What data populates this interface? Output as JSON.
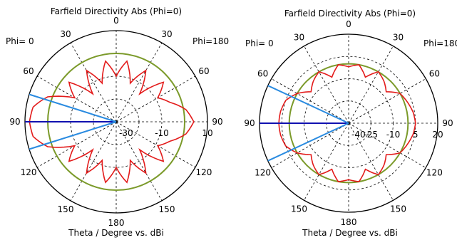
{
  "chart_data": [
    {
      "type": "polar",
      "title": "Farfield Directivity Abs (Phi=0)",
      "xlabel": "Theta / Degree vs. dBi",
      "phi_left_label": "Phi=  0",
      "phi_right_label": "Phi=180",
      "angle_ticks": [
        "0",
        "30",
        "60",
        "90",
        "120",
        "150",
        "180",
        "150",
        "120",
        "90",
        "60",
        "30"
      ],
      "radial_unit": "dBi",
      "radial_range": [
        -30,
        10
      ],
      "radial_ticks": [
        "-30",
        "-10",
        "10"
      ],
      "grid": true,
      "reference_circle_dbi": 0,
      "main_lobe": {
        "direction_deg": 90,
        "half_power_beamwidth_deg": 35
      },
      "series": [
        {
          "color": "#e31b1b",
          "theta_deg": [
            0,
            10,
            20,
            30,
            40,
            50,
            60,
            70,
            80,
            90,
            100,
            110,
            120,
            130,
            140,
            150,
            160,
            170,
            180
          ],
          "phi0_dbi": [
            -10,
            -3,
            -12,
            -4,
            -14,
            -3,
            -9,
            2,
            7,
            8,
            7,
            2,
            -9,
            -3,
            -14,
            -4,
            -12,
            -3,
            -10
          ],
          "phi180_dbi": [
            -10,
            -3,
            -12,
            -4,
            -14,
            -3,
            -9,
            -5,
            1,
            4,
            1,
            -5,
            -9,
            -3,
            -14,
            -4,
            -12,
            -3,
            -10
          ]
        }
      ]
    },
    {
      "type": "polar",
      "title": "Farfield Directivity Abs (Phi=0)",
      "xlabel": "Theta / Degree vs. dBi",
      "phi_left_label": "Phi=  0",
      "phi_right_label": "Phi=180",
      "angle_ticks": [
        "0",
        "30",
        "60",
        "90",
        "120",
        "150",
        "180",
        "150",
        "120",
        "90",
        "60",
        "30"
      ],
      "radial_unit": "dBi",
      "radial_range": [
        -40,
        20
      ],
      "radial_ticks": [
        "-40",
        "-25",
        "-10",
        "5",
        "20"
      ],
      "grid": true,
      "reference_circle_dbi": 0,
      "main_lobe": {
        "direction_deg": 90,
        "half_power_beamwidth_deg": 50
      },
      "series": [
        {
          "color": "#e31b1b",
          "theta_deg": [
            0,
            10,
            20,
            30,
            40,
            50,
            60,
            70,
            80,
            90,
            100,
            110,
            120,
            130,
            140,
            150,
            160,
            170,
            180
          ],
          "phi0_dbi": [
            -2,
            0,
            -7,
            0,
            -3,
            -7,
            0,
            5,
            6.5,
            7,
            6.5,
            5,
            0,
            -7,
            -3,
            0,
            -7,
            0,
            -2
          ],
          "phi180_dbi": [
            -2,
            0,
            -7,
            0,
            -3,
            -7,
            0,
            2,
            4,
            5,
            4,
            2,
            0,
            -7,
            -3,
            0,
            -7,
            0,
            -2
          ]
        }
      ]
    }
  ]
}
